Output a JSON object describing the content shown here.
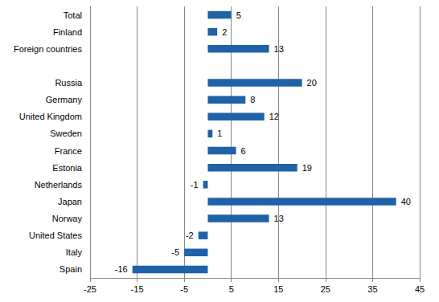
{
  "chart_data": {
    "type": "bar",
    "orientation": "horizontal",
    "categories": [
      "Total",
      "Finland",
      "Foreign countries",
      null,
      "Russia",
      "Germany",
      "United Kingdom",
      "Sweden",
      "France",
      "Estonia",
      "Netherlands",
      "Japan",
      "Norway",
      "United States",
      "Italy",
      "Spain"
    ],
    "values": [
      5,
      2,
      13,
      null,
      20,
      8,
      12,
      1,
      6,
      19,
      -1,
      40,
      13,
      -2,
      -5,
      -16
    ],
    "color": "#1f62a8",
    "xlim": [
      -25,
      45
    ],
    "xticks": [
      -25,
      -15,
      -5,
      5,
      15,
      25,
      35,
      45
    ],
    "grid": true,
    "data_labels": true
  }
}
